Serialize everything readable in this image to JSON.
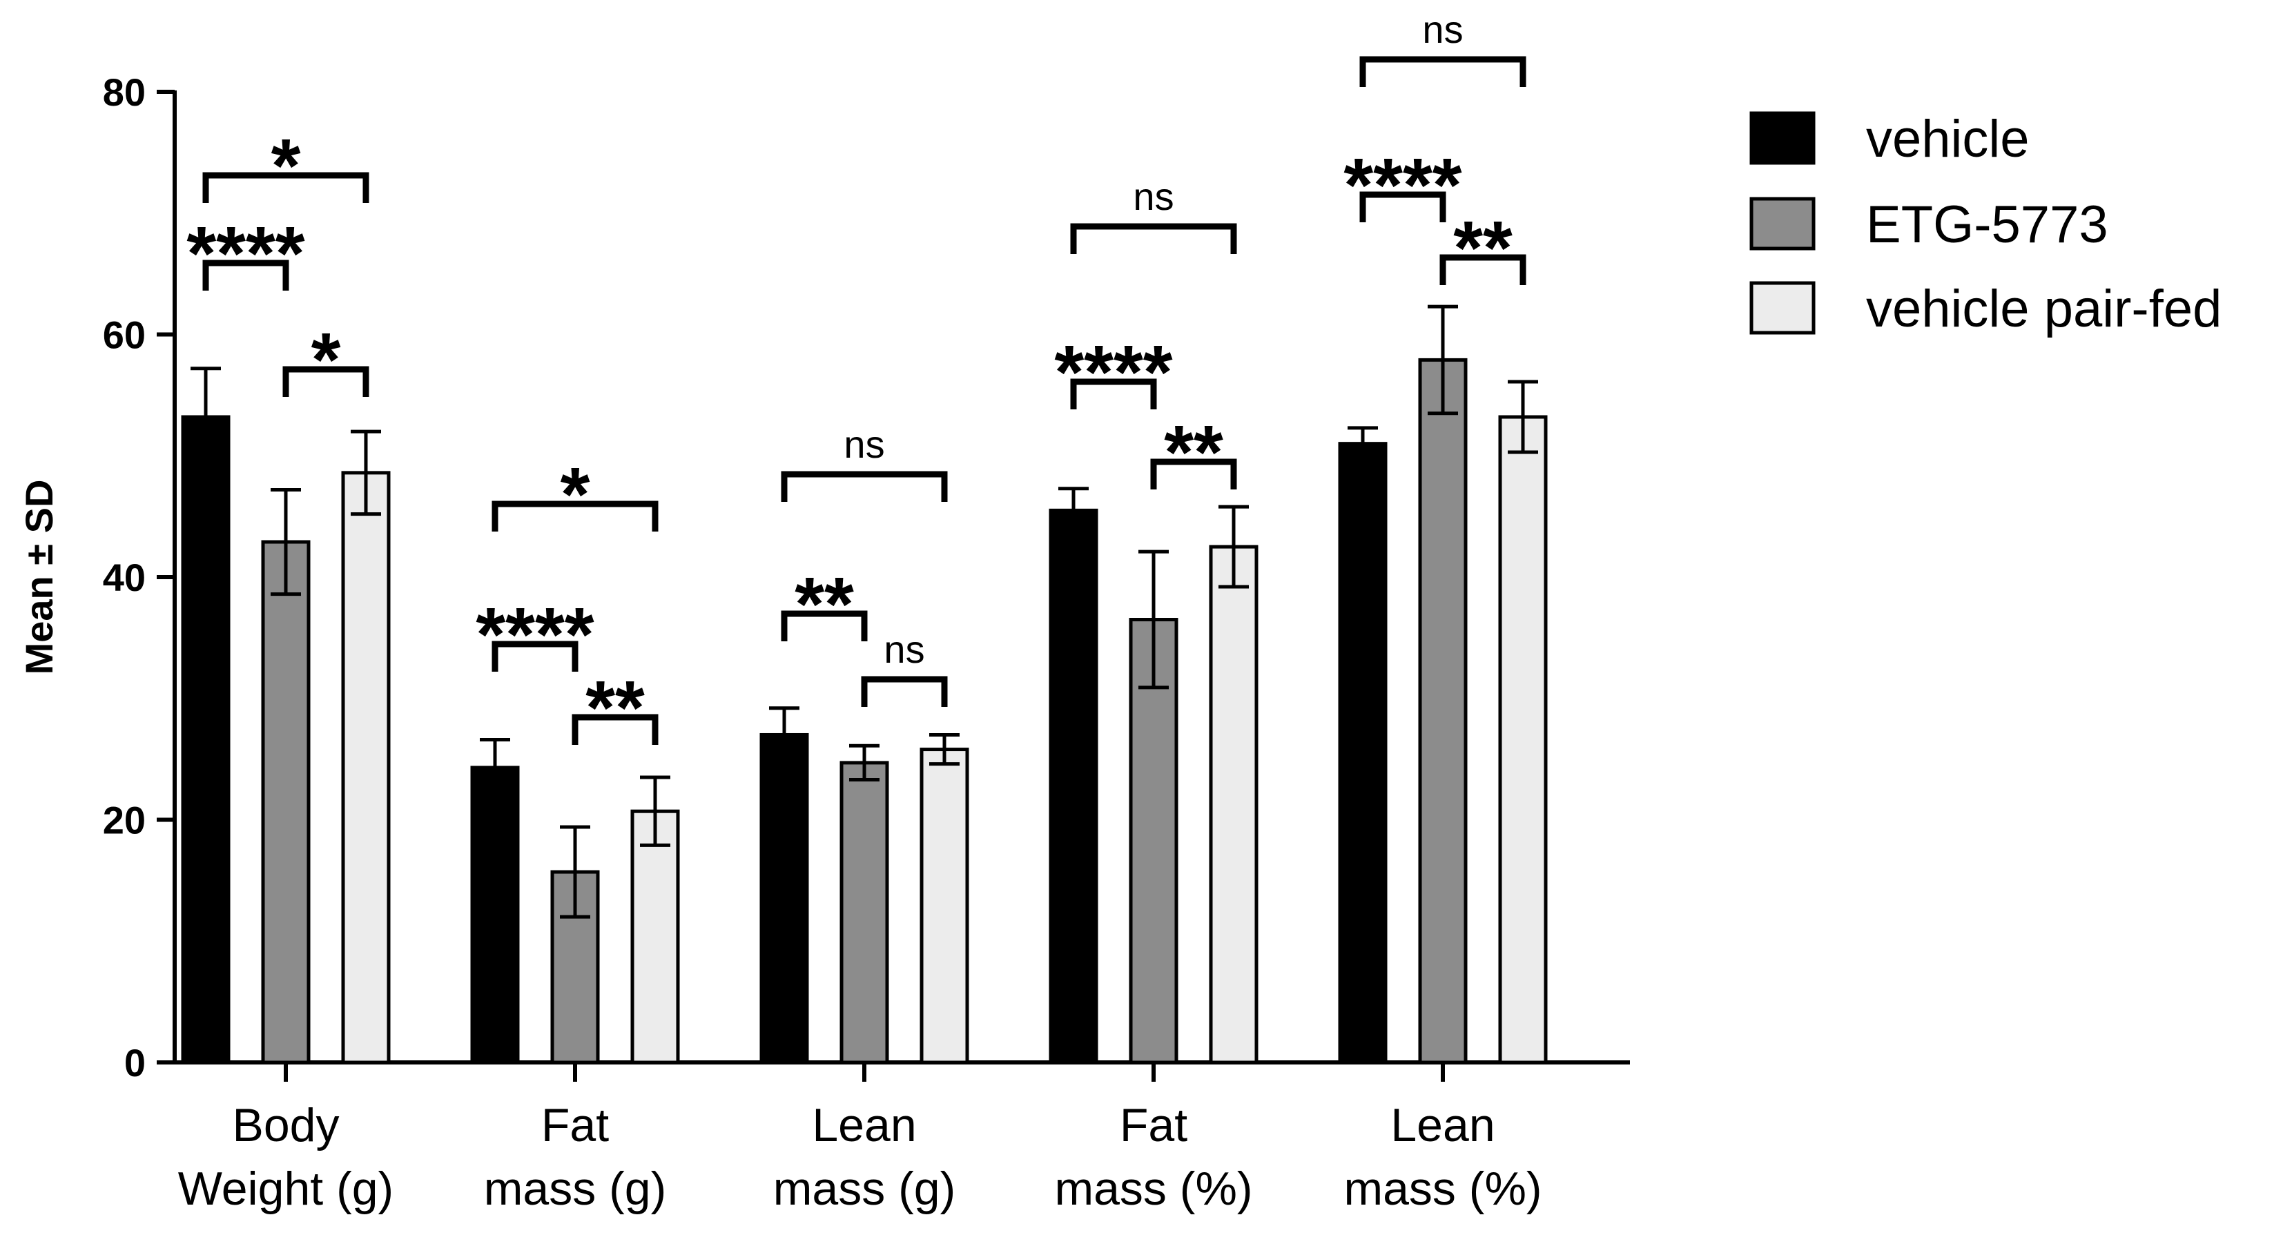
{
  "chart_data": {
    "type": "bar",
    "ylabel": "Mean  ± SD",
    "ylim": [
      0,
      80
    ],
    "yticks": [
      "0",
      "20",
      "40",
      "60",
      "80"
    ],
    "grid": false,
    "legend_position": "top-right",
    "categories": [
      [
        "Body",
        "Weight (g)"
      ],
      [
        "Fat",
        "mass (g)"
      ],
      [
        "Lean",
        "mass (g)"
      ],
      [
        "Fat",
        "mass (%)"
      ],
      [
        "Lean",
        "mass (%)"
      ]
    ],
    "series": [
      {
        "name": "vehicle",
        "color": "#000000",
        "values": [
          53.2,
          24.3,
          27.0,
          45.5,
          51.0
        ],
        "sd": [
          4.0,
          2.3,
          2.2,
          1.8,
          1.3
        ]
      },
      {
        "name": "ETG-5773",
        "color": "#8c8c8c",
        "values": [
          42.9,
          15.7,
          24.7,
          36.5,
          57.9
        ],
        "sd": [
          4.3,
          3.7,
          1.4,
          5.6,
          4.4
        ]
      },
      {
        "name": "vehicle pair-fed",
        "color": "#ececec",
        "values": [
          48.6,
          20.7,
          25.8,
          42.5,
          53.2
        ],
        "sd": [
          3.4,
          2.8,
          1.2,
          3.3,
          2.9
        ]
      }
    ],
    "significance": [
      {
        "category": 0,
        "from": 0,
        "to": 2,
        "label": "*"
      },
      {
        "category": 0,
        "from": 0,
        "to": 1,
        "label": "****"
      },
      {
        "category": 0,
        "from": 1,
        "to": 2,
        "label": "*"
      },
      {
        "category": 1,
        "from": 0,
        "to": 2,
        "label": "*"
      },
      {
        "category": 1,
        "from": 0,
        "to": 1,
        "label": "****"
      },
      {
        "category": 1,
        "from": 1,
        "to": 2,
        "label": "**"
      },
      {
        "category": 2,
        "from": 0,
        "to": 2,
        "label": "ns"
      },
      {
        "category": 2,
        "from": 0,
        "to": 1,
        "label": "**"
      },
      {
        "category": 2,
        "from": 1,
        "to": 2,
        "label": "ns"
      },
      {
        "category": 3,
        "from": 0,
        "to": 2,
        "label": "ns"
      },
      {
        "category": 3,
        "from": 0,
        "to": 1,
        "label": "****"
      },
      {
        "category": 3,
        "from": 1,
        "to": 2,
        "label": "**"
      },
      {
        "category": 4,
        "from": 0,
        "to": 2,
        "label": "ns"
      },
      {
        "category": 4,
        "from": 0,
        "to": 1,
        "label": "****"
      },
      {
        "category": 4,
        "from": 1,
        "to": 2,
        "label": "**"
      }
    ]
  }
}
